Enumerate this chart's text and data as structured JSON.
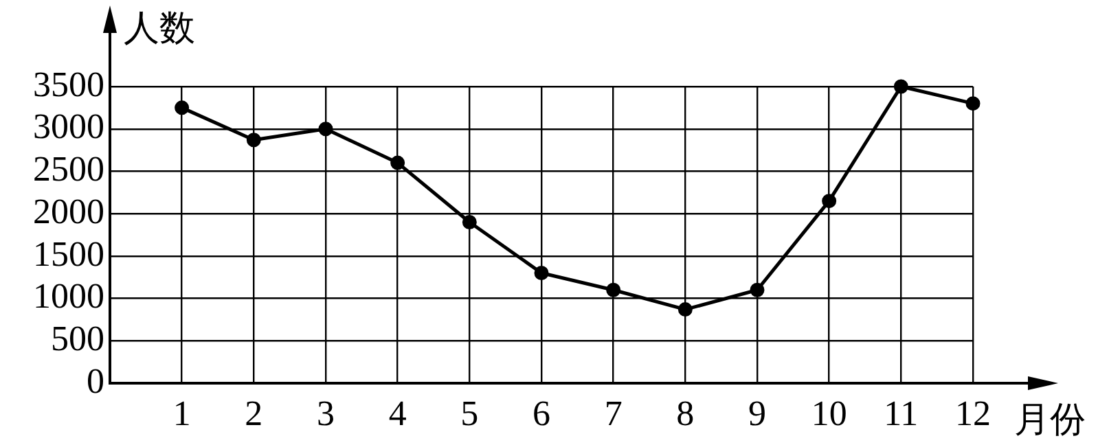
{
  "chart_data": {
    "type": "line",
    "xlabel": "月份",
    "ylabel": "人数",
    "x": [
      1,
      2,
      3,
      4,
      5,
      6,
      7,
      8,
      9,
      10,
      11,
      12
    ],
    "series": [
      {
        "color": "#000000",
        "values": [
          3250,
          2870,
          3000,
          2600,
          1900,
          1300,
          1100,
          870,
          1100,
          2150,
          3500,
          3300
        ]
      }
    ],
    "xlim": [
      0,
      12
    ],
    "xticks": [
      1,
      2,
      3,
      4,
      5,
      6,
      7,
      8,
      9,
      10,
      11,
      12
    ],
    "ylim": [
      0,
      3500
    ],
    "yticks": [
      0,
      500,
      1000,
      1500,
      2000,
      2500,
      3000,
      3500
    ],
    "grid": true,
    "legend": false,
    "marker": "circle",
    "line_style": "solid"
  }
}
